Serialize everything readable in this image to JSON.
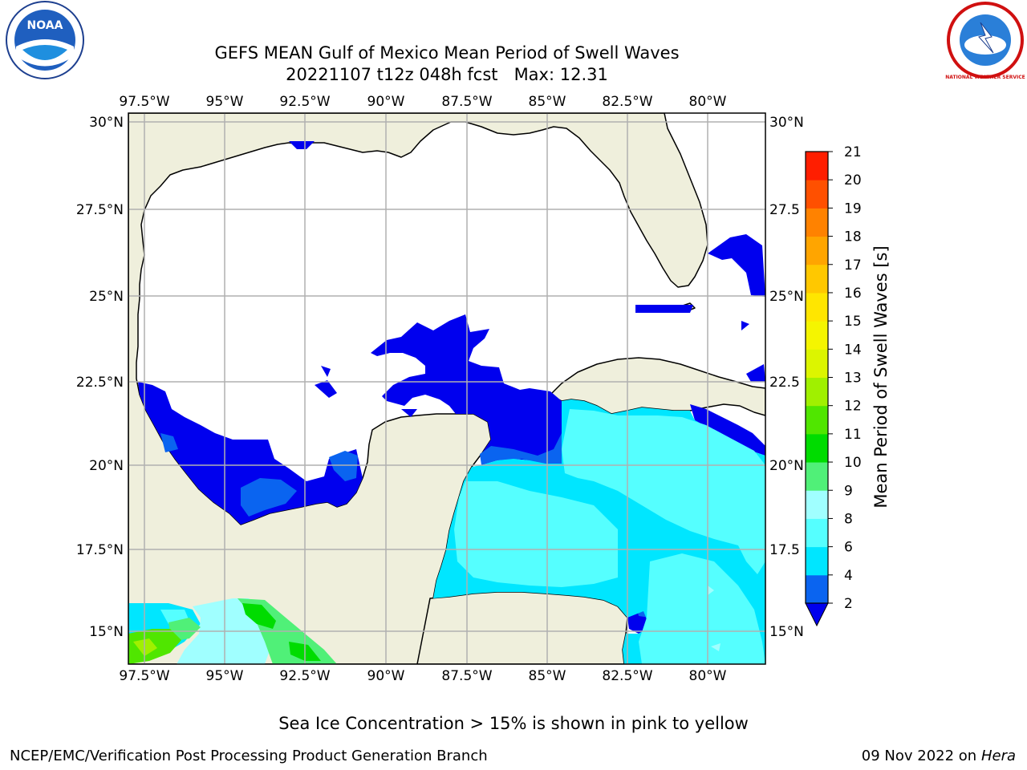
{
  "title": {
    "line1": "GEFS MEAN Gulf of Mexico Mean Period of Swell Waves",
    "line2": "20221107 t12z 048h fcst",
    "max_label": "Max: 12.31"
  },
  "logos": {
    "left": "NOAA",
    "right": "NATIONAL WEATHER SERVICE"
  },
  "map": {
    "lon_labels": [
      "97.5°W",
      "95°W",
      "92.5°W",
      "90°W",
      "87.5°W",
      "85°W",
      "82.5°W",
      "80°W"
    ],
    "lat_labels_left": [
      "30°N",
      "27.5°N",
      "25°N",
      "22.5°N",
      "20°N",
      "17.5°N",
      "15°N"
    ],
    "lat_labels_right": [
      "30°N",
      "27.5",
      "25°N",
      "22.5",
      "20°N",
      "17.5",
      "15°N"
    ]
  },
  "colorbar": {
    "label": "Mean Period of Swell Waves [s]",
    "ticks": [
      "2",
      "4",
      "6",
      "8",
      "9",
      "10",
      "11",
      "12",
      "13",
      "14",
      "15",
      "16",
      "17",
      "18",
      "19",
      "20",
      "21"
    ],
    "colors": [
      "#0a64f0",
      "#00e6ff",
      "#55ffff",
      "#a0ffff",
      "#50f078",
      "#00dc00",
      "#50e600",
      "#a0f000",
      "#dcf500",
      "#f5f500",
      "#ffe600",
      "#ffc800",
      "#ffa500",
      "#ff8200",
      "#ff5000",
      "#ff1e00"
    ],
    "extend_color": "#0000ee"
  },
  "note": "Sea Ice Concentration > 15% is shown in pink to yellow",
  "footer": {
    "left": "NCEP/EMC/Verification Post Processing Product Generation Branch",
    "date": "09 Nov 2022 on",
    "machine": "Hera"
  }
}
